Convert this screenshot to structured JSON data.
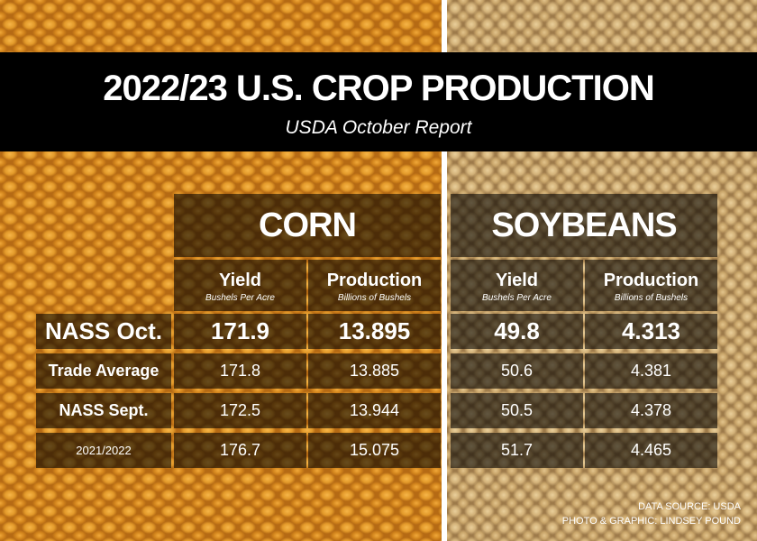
{
  "header": {
    "title": "2022/23 U.S. CROP PRODUCTION",
    "subtitle": "USDA October Report"
  },
  "table": {
    "groups": [
      "CORN",
      "SOYBEANS"
    ],
    "columns": [
      {
        "label": "Yield",
        "unit": "Bushels Per Acre"
      },
      {
        "label": "Production",
        "unit": "Billions of Bushels"
      },
      {
        "label": "Yield",
        "unit": "Bushels Per Acre"
      },
      {
        "label": "Production",
        "unit": "Billions of Bushels"
      }
    ],
    "rows": [
      [
        "NASS Oct.",
        "171.9",
        "13.895",
        "49.8",
        "4.313"
      ],
      [
        "Trade Average",
        "171.8",
        "13.885",
        "50.6",
        "4.381"
      ],
      [
        "NASS Sept.",
        "172.5",
        "13.944",
        "50.5",
        "4.378"
      ],
      [
        "2021/2022",
        "176.7",
        "15.075",
        "51.7",
        "4.465"
      ]
    ]
  },
  "footer": {
    "source": "DATA SOURCE: USDA",
    "credit": "PHOTO & GRAPHIC: LINDSEY POUND"
  }
}
